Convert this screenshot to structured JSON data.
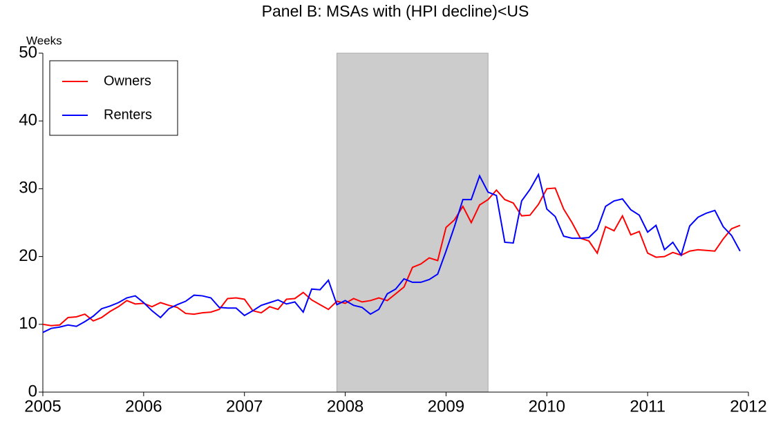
{
  "chart_data": {
    "type": "line",
    "title": "Panel B: MSAs with (HPI decline)<US",
    "y_label": "Weeks",
    "x": [
      2005,
      2005.083,
      2005.167,
      2005.25,
      2005.333,
      2005.417,
      2005.5,
      2005.583,
      2005.667,
      2005.75,
      2005.833,
      2005.917,
      2006,
      2006.083,
      2006.167,
      2006.25,
      2006.333,
      2006.417,
      2006.5,
      2006.583,
      2006.667,
      2006.75,
      2006.833,
      2006.917,
      2007,
      2007.083,
      2007.167,
      2007.25,
      2007.333,
      2007.417,
      2007.5,
      2007.583,
      2007.667,
      2007.75,
      2007.833,
      2007.917,
      2008,
      2008.083,
      2008.167,
      2008.25,
      2008.333,
      2008.417,
      2008.5,
      2008.583,
      2008.667,
      2008.75,
      2008.833,
      2008.917,
      2009,
      2009.083,
      2009.167,
      2009.25,
      2009.333,
      2009.417,
      2009.5,
      2009.583,
      2009.667,
      2009.75,
      2009.833,
      2009.917,
      2010,
      2010.083,
      2010.167,
      2010.25,
      2010.333,
      2010.417,
      2010.5,
      2010.583,
      2010.667,
      2010.75,
      2010.833,
      2010.917,
      2011,
      2011.083,
      2011.167,
      2011.25,
      2011.333,
      2011.417,
      2011.5,
      2011.583,
      2011.667,
      2011.75,
      2011.833,
      2011.917
    ],
    "series": [
      {
        "name": "Owners",
        "color": "#ff0000",
        "values": [
          10.0,
          9.8,
          9.9,
          11.0,
          11.1,
          11.5,
          10.5,
          11.0,
          11.9,
          12.6,
          13.5,
          13.0,
          13.1,
          12.6,
          13.2,
          12.8,
          12.5,
          11.6,
          11.5,
          11.7,
          11.8,
          12.2,
          13.8,
          13.9,
          13.7,
          12.0,
          11.7,
          12.6,
          12.2,
          13.7,
          13.8,
          14.7,
          13.6,
          12.9,
          12.2,
          13.4,
          13.1,
          13.8,
          13.3,
          13.5,
          13.9,
          13.5,
          14.5,
          15.5,
          18.4,
          18.9,
          19.8,
          19.4,
          24.3,
          25.4,
          27.4,
          25.0,
          27.6,
          28.4,
          29.8,
          28.4,
          27.9,
          26.0,
          26.1,
          27.7,
          30.0,
          30.1,
          27.0,
          25.0,
          22.7,
          22.3,
          20.5,
          24.4,
          23.8,
          26.0,
          23.2,
          23.7,
          20.5,
          19.9,
          20.0,
          20.6,
          20.2,
          20.8,
          21.0,
          20.9,
          20.8,
          22.6,
          24.1,
          24.6
        ]
      },
      {
        "name": "Renters",
        "color": "#0000ff",
        "values": [
          8.8,
          9.4,
          9.6,
          9.9,
          9.7,
          10.4,
          11.2,
          12.3,
          12.7,
          13.2,
          13.9,
          14.2,
          13.2,
          12.0,
          11.0,
          12.3,
          12.9,
          13.4,
          14.3,
          14.2,
          13.9,
          12.5,
          12.4,
          12.4,
          11.3,
          12.0,
          12.8,
          13.2,
          13.6,
          13.0,
          13.3,
          11.8,
          15.2,
          15.1,
          16.5,
          12.9,
          13.5,
          12.8,
          12.5,
          11.5,
          12.2,
          14.5,
          15.2,
          16.7,
          16.2,
          16.2,
          16.6,
          17.4,
          20.8,
          24.4,
          28.4,
          28.4,
          31.9,
          29.5,
          29.0,
          22.1,
          22.0,
          28.2,
          29.9,
          32.1,
          27.0,
          25.9,
          23.0,
          22.7,
          22.7,
          22.8,
          24.0,
          27.4,
          28.2,
          28.5,
          26.9,
          26.1,
          23.6,
          24.6,
          21.0,
          22.1,
          20.2,
          24.5,
          25.8,
          26.4,
          26.8,
          24.4,
          23.1,
          20.8
        ]
      }
    ],
    "shaded_region": [
      2007.917,
      2009.417
    ],
    "shade_color": "#cccccc",
    "xlim": [
      2005,
      2012
    ],
    "xticks": [
      2005,
      2006,
      2007,
      2008,
      2009,
      2010,
      2011,
      2012
    ],
    "ylim": [
      0,
      50
    ],
    "yticks": [
      0,
      10,
      20,
      30,
      40,
      50
    ],
    "legend": "upper left"
  }
}
